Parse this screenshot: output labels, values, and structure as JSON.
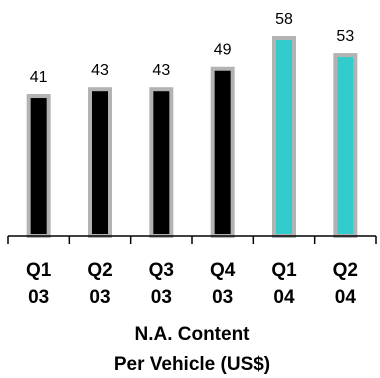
{
  "chart_data": {
    "type": "bar",
    "categories": [
      [
        "Q1",
        "03"
      ],
      [
        "Q2",
        "03"
      ],
      [
        "Q3",
        "03"
      ],
      [
        "Q4",
        "03"
      ],
      [
        "Q1",
        "04"
      ],
      [
        "Q2",
        "04"
      ]
    ],
    "values": [
      41,
      43,
      43,
      49,
      58,
      53
    ],
    "title": "",
    "xlabel": [
      "N.A. Content",
      "Per Vehicle (US$)"
    ],
    "ylabel": "",
    "ylim": [
      0,
      58
    ],
    "grid": false,
    "legend": "none",
    "colors": {
      "bar_fill": [
        "#000000",
        "#000000",
        "#000000",
        "#000000",
        "#33cccc",
        "#33cccc"
      ],
      "bar_border": "#b3b3b3",
      "axis": "#000000"
    }
  }
}
